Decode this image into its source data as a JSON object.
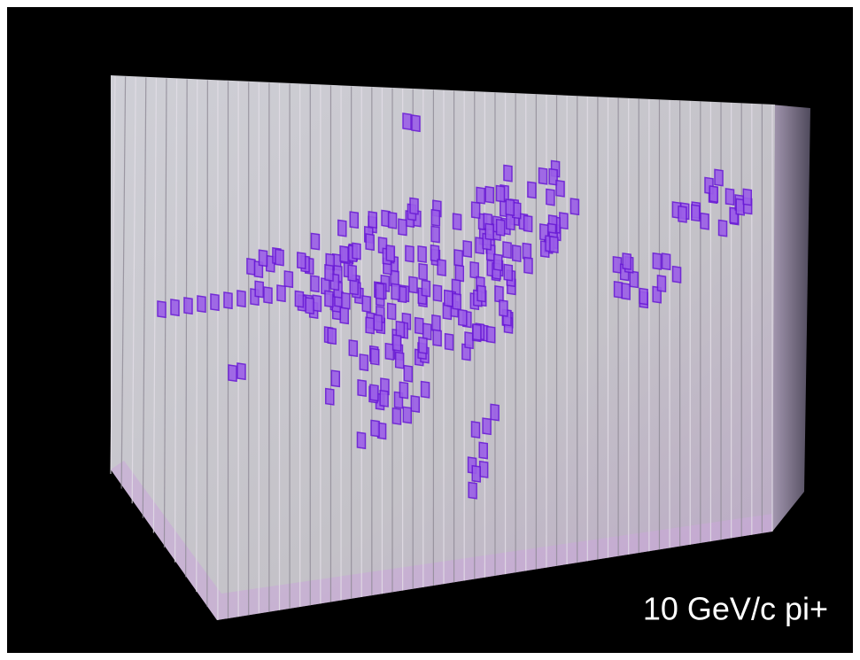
{
  "caption": "10 GeV/c pi+"
}
